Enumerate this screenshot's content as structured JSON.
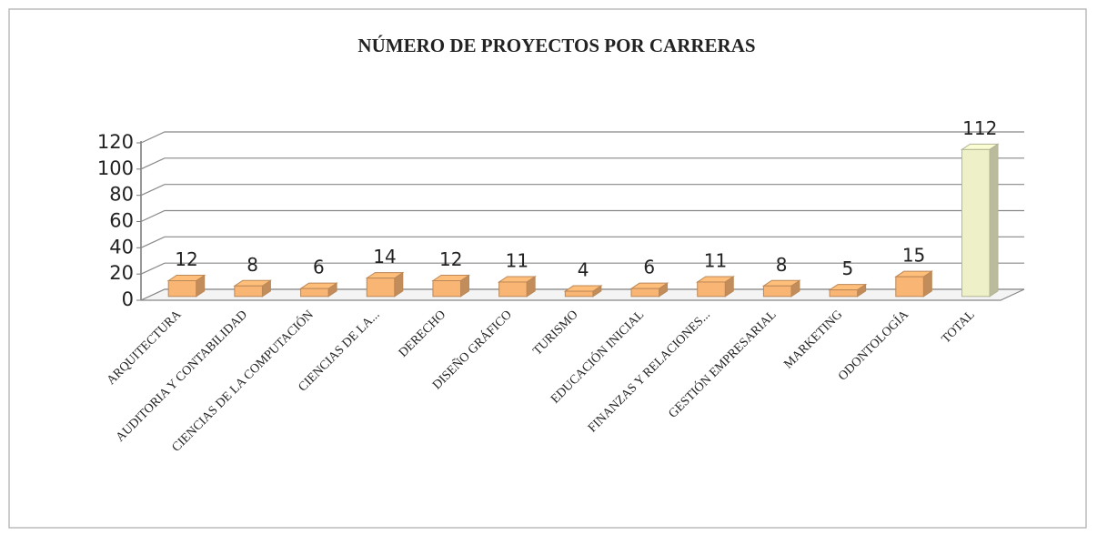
{
  "chart_data": {
    "type": "bar3d",
    "title": "NÚMERO DE PROYECTOS POR CARRERAS",
    "categories": [
      "ARQUITECTURA",
      "AUDITORIA Y CONTABILIDAD",
      "CIENCIAS DE LA COMPUTACIÓN",
      "CIENCIAS DE LA...",
      "DERECHO",
      "DISEÑO GRÁFICO",
      "TURISMO",
      "EDUCACIÓN INICIAL",
      "FINANZAS Y RELACIONES...",
      "GESTIÓN EMPRESARIAL",
      "MARKETING",
      "ODONTOLOGÍA",
      "TOTAL"
    ],
    "values": [
      12,
      8,
      6,
      14,
      12,
      11,
      4,
      6,
      11,
      8,
      5,
      15,
      112
    ],
    "colors": [
      "#f9b574",
      "#f9b574",
      "#f9b574",
      "#f9b574",
      "#f9b574",
      "#f9b574",
      "#f9b574",
      "#f9b574",
      "#f9b574",
      "#f9b574",
      "#f9b574",
      "#f9b574",
      "#eef0c8"
    ],
    "ylim": [
      0,
      120
    ],
    "yticks": [
      0,
      20,
      40,
      60,
      80,
      100,
      120
    ],
    "grid": true
  }
}
